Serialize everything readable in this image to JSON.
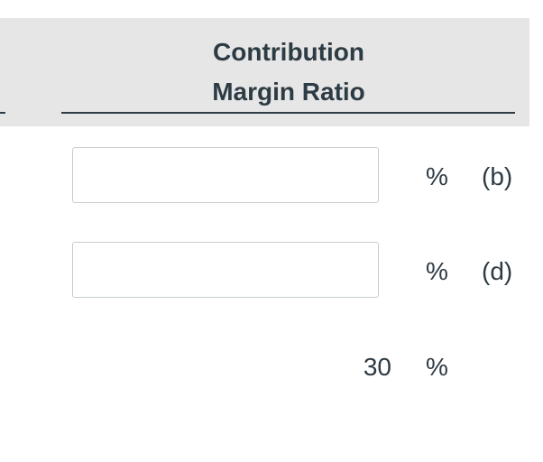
{
  "header": {
    "title_lines": [
      "Contribution",
      "Margin Ratio"
    ]
  },
  "rows": [
    {
      "left_fragment": ")",
      "unit": "%",
      "tag": "(b)"
    },
    {
      "unit": "%",
      "tag": "(d)"
    },
    {
      "value": 30,
      "unit": "%"
    }
  ]
}
